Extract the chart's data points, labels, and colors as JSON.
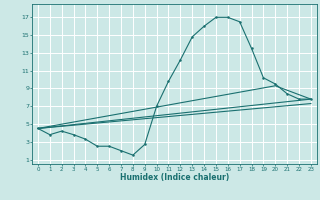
{
  "title": "",
  "xlabel": "Humidex (Indice chaleur)",
  "ylabel": "",
  "background_color": "#cce8e6",
  "grid_color": "#ffffff",
  "line_color": "#1a7070",
  "xlim": [
    -0.5,
    23.5
  ],
  "ylim": [
    0.5,
    18.5
  ],
  "xticks": [
    0,
    1,
    2,
    3,
    4,
    5,
    6,
    7,
    8,
    9,
    10,
    11,
    12,
    13,
    14,
    15,
    16,
    17,
    18,
    19,
    20,
    21,
    22,
    23
  ],
  "yticks": [
    1,
    3,
    5,
    7,
    9,
    11,
    13,
    15,
    17
  ],
  "line1_x": [
    0,
    1,
    2,
    3,
    4,
    5,
    6,
    7,
    8,
    9,
    10,
    11,
    12,
    13,
    14,
    15,
    16,
    17,
    18,
    19,
    20,
    21,
    22,
    23
  ],
  "line1_y": [
    4.5,
    3.8,
    4.2,
    3.8,
    3.3,
    2.5,
    2.5,
    2.0,
    1.5,
    2.7,
    7.0,
    9.8,
    12.2,
    14.8,
    16.0,
    17.0,
    17.0,
    16.5,
    13.5,
    10.2,
    9.5,
    8.4,
    7.8,
    7.8
  ],
  "line2_x": [
    0,
    23
  ],
  "line2_y": [
    4.5,
    7.8
  ],
  "line3_x": [
    0,
    20,
    23
  ],
  "line3_y": [
    4.5,
    9.3,
    7.8
  ],
  "line4_x": [
    0,
    23
  ],
  "line4_y": [
    4.5,
    7.3
  ]
}
